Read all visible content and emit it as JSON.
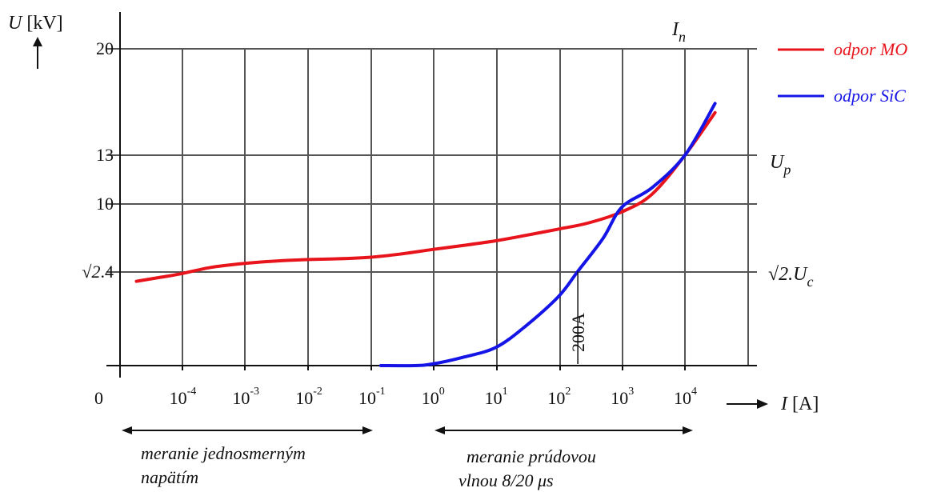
{
  "chart_data": {
    "type": "line",
    "y_axis": {
      "symbol": "U",
      "unit": "[kV]",
      "tick_labels": [
        {
          "value": 20,
          "label": "20"
        },
        {
          "value": 13,
          "label": "13"
        },
        {
          "value": 10,
          "label": "10"
        },
        {
          "value": 5.66,
          "label_prefix": "√2",
          "label_suffix": ".4"
        }
      ]
    },
    "x_axis": {
      "symbol": "I",
      "unit": "[A]",
      "scale": "log",
      "origin_label": "0",
      "tick_labels": [
        {
          "value": 0.0001,
          "base": "10",
          "exp": "-4"
        },
        {
          "value": 0.001,
          "base": "10",
          "exp": "-3"
        },
        {
          "value": 0.01,
          "base": "10",
          "exp": "-2"
        },
        {
          "value": 0.1,
          "base": "10",
          "exp": "-1"
        },
        {
          "value": 1,
          "base": "10",
          "exp": "0"
        },
        {
          "value": 10,
          "base": "10",
          "exp": "1"
        },
        {
          "value": 100,
          "base": "10",
          "exp": "2"
        },
        {
          "value": 1000,
          "base": "10",
          "exp": "3"
        },
        {
          "value": 10000,
          "base": "10",
          "exp": "4"
        }
      ]
    },
    "grid": true,
    "right_labels": {
      "In": {
        "base": "I",
        "sub": "n"
      },
      "Up": {
        "base": "U",
        "sub": "p"
      },
      "Uc": {
        "prefix": "√2.",
        "base": "U",
        "sub": "c"
      }
    },
    "series": [
      {
        "name": "odpor MO",
        "color": "#e8141c",
        "points": [
          [
            2e-05,
            5.1
          ],
          [
            5e-05,
            5.35
          ],
          [
            0.0001,
            5.55
          ],
          [
            0.0003,
            5.95
          ],
          [
            0.001,
            6.2
          ],
          [
            0.003,
            6.35
          ],
          [
            0.01,
            6.45
          ],
          [
            0.03,
            6.5
          ],
          [
            0.1,
            6.6
          ],
          [
            0.3,
            6.8
          ],
          [
            1,
            7.1
          ],
          [
            3,
            7.35
          ],
          [
            10,
            7.65
          ],
          [
            30,
            8.0
          ],
          [
            100,
            8.4
          ],
          [
            300,
            8.8
          ],
          [
            1000,
            9.5
          ],
          [
            3000,
            10.6
          ],
          [
            10000,
            13.0
          ],
          [
            30000,
            15.8
          ]
        ]
      },
      {
        "name": "odpor SiC",
        "color": "#1414e6",
        "points": [
          [
            0.15,
            0.0
          ],
          [
            0.5,
            0.0
          ],
          [
            1,
            0.1
          ],
          [
            3,
            0.5
          ],
          [
            10,
            1.1
          ],
          [
            30,
            2.4
          ],
          [
            100,
            4.2
          ],
          [
            200,
            5.7
          ],
          [
            500,
            7.8
          ],
          [
            1000,
            9.8
          ],
          [
            3000,
            11.0
          ],
          [
            10000,
            13.0
          ],
          [
            30000,
            16.4
          ]
        ]
      }
    ],
    "annotations": {
      "marker_200A": {
        "text": "200A",
        "x": 200
      },
      "range_dc": {
        "text_line1": "meranie jednosmerným",
        "text_line2": "napätím",
        "from": 1e-05,
        "to": 0.1
      },
      "range_impulse": {
        "text_line1": "meranie prúdovou",
        "text_line2": "vlnou 8/20 μs",
        "from": 1,
        "to": 10000
      }
    },
    "legend": {
      "position": "top-right"
    }
  }
}
